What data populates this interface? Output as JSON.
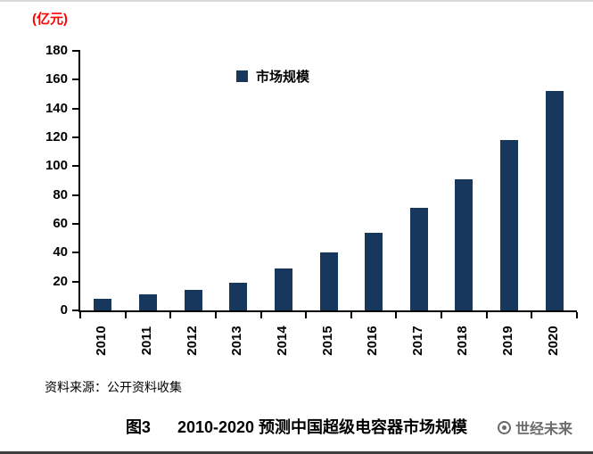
{
  "chart_data": {
    "type": "bar",
    "title": "2010-2020 预测中国超级电容器市场规模",
    "unit_label": "(亿元)",
    "categories": [
      "2010",
      "2011",
      "2012",
      "2013",
      "2014",
      "2015",
      "2016",
      "2017",
      "2018",
      "2019",
      "2020"
    ],
    "values": [
      8,
      11,
      14,
      19,
      29,
      40,
      54,
      71,
      91,
      118,
      152
    ],
    "legend": "市场规模",
    "xlabel": "",
    "ylabel": "(亿元)",
    "ylim": [
      0,
      180
    ],
    "ytick_step": 20,
    "grid": "off",
    "legend_position": "top-center",
    "bar_color": "#17375D"
  },
  "colors": {
    "bar": "#17375D",
    "unit_label": "#FF0000",
    "axis": "#000000",
    "watermark": "#5a5a5a"
  },
  "source_note": "资料来源：公开资料收集",
  "caption": "图3      2010-2020 预测中国超级电容器市场规模",
  "watermark": "世经未来"
}
